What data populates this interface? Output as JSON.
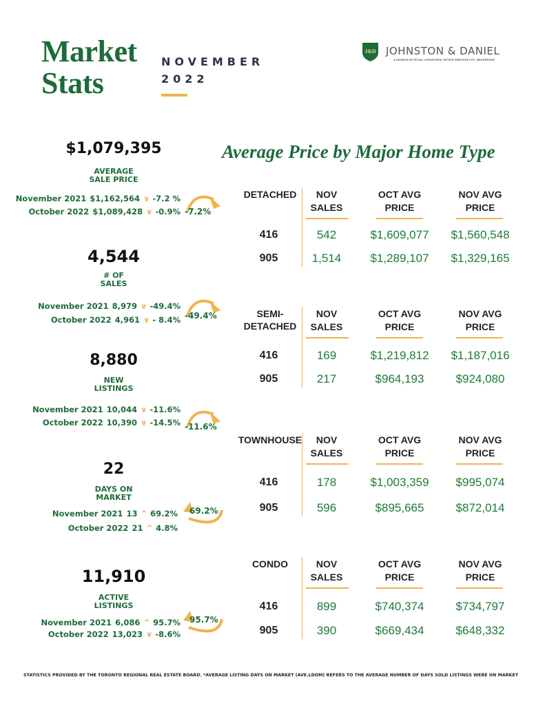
{
  "header": {
    "title_line1": "Market",
    "title_line2": "Stats",
    "month": "NOVEMBER",
    "year": "2022"
  },
  "logo": {
    "mark": "J&D",
    "name": "JOHNSTON & DANIEL",
    "subtitle": "A DIVISION OF ROYAL LePAGE REAL ESTATE SERVICES LTD., BROKERAGE"
  },
  "colors": {
    "brand_green": "#1d6b3a",
    "accent_orange": "#f0b44c"
  },
  "stats": [
    {
      "value": "$1,079,395",
      "label1": "AVERAGE",
      "label2": "SALE PRICE",
      "rows": [
        {
          "period": "November 2021",
          "value": "$1,162,564",
          "dir": "down",
          "change": "-7.2 %"
        },
        {
          "period": "October 2022",
          "value": "$1,089,428",
          "dir": "down",
          "change": "-0.9%"
        }
      ],
      "badge": "-7.2%",
      "badge_dir": "down"
    },
    {
      "value": "4,544",
      "label1": "# OF",
      "label2": "SALES",
      "rows": [
        {
          "period": "November 2021",
          "value": "8,979",
          "dir": "down",
          "change": "-49.4%"
        },
        {
          "period": "October 2022",
          "value": "4,961",
          "dir": "down",
          "change": "- 8.4%"
        }
      ],
      "badge": "-49.4%",
      "badge_dir": "down"
    },
    {
      "value": "8,880",
      "label1": "NEW",
      "label2": "LISTINGS",
      "rows": [
        {
          "period": "November 2021",
          "value": "10,044",
          "dir": "down",
          "change": "-11.6%"
        },
        {
          "period": "October 2022",
          "value": "10,390",
          "dir": "down",
          "change": "-14.5%"
        }
      ],
      "badge": "-11.6%",
      "badge_dir": "down"
    },
    {
      "value": "22",
      "label1": "DAYS ON",
      "label2": "MARKET",
      "rows": [
        {
          "period": "November 2021",
          "value": "13",
          "dir": "up",
          "change": "69.2%"
        },
        {
          "period": "October 2022",
          "value": "21",
          "dir": "up",
          "change": "4.8%"
        }
      ],
      "badge": "69.2%",
      "badge_dir": "up"
    },
    {
      "value": "11,910",
      "label1": "ACTIVE",
      "label2": "LISTINGS",
      "rows": [
        {
          "period": "November 2021",
          "value": "6,086",
          "dir": "up",
          "change": "95.7%"
        },
        {
          "period": "October 2022",
          "value": "13,023",
          "dir": "down",
          "change": "-8.6%"
        }
      ],
      "badge": "95.7%",
      "badge_dir": "up"
    }
  ],
  "price_section": {
    "heading": "Average Price by Major Home Type",
    "columns": [
      [
        "NOV",
        "SALES"
      ],
      [
        "OCT AVG",
        "PRICE"
      ],
      [
        "NOV AVG",
        "PRICE"
      ]
    ],
    "types": [
      {
        "name1": "DETACHED",
        "name2": "",
        "rows": [
          {
            "region": "416",
            "sales": "542",
            "oct": "$1,609,077",
            "nov": "$1,560,548"
          },
          {
            "region": "905",
            "sales": "1,514",
            "oct": "$1,289,107",
            "nov": "$1,329,165"
          }
        ]
      },
      {
        "name1": "SEMI-",
        "name2": "DETACHED",
        "rows": [
          {
            "region": "416",
            "sales": "169",
            "oct": "$1,219,812",
            "nov": "$1,187,016"
          },
          {
            "region": "905",
            "sales": "217",
            "oct": "$964,193",
            "nov": "$924,080"
          }
        ]
      },
      {
        "name1": "TOWNHOUSE",
        "name2": "",
        "rows": [
          {
            "region": "416",
            "sales": "178",
            "oct": "$1,003,359",
            "nov": "$995,074"
          },
          {
            "region": "905",
            "sales": "596",
            "oct": "$895,665",
            "nov": "$872,014"
          }
        ]
      },
      {
        "name1": "CONDO",
        "name2": "",
        "rows": [
          {
            "region": "416",
            "sales": "899",
            "oct": "$740,374",
            "nov": "$734,797"
          },
          {
            "region": "905",
            "sales": "390",
            "oct": "$669,434",
            "nov": "$648,332"
          }
        ]
      }
    ]
  },
  "footer": "STATISTICS PROVIDED BY THE TORONTO REGIONAL REAL ESTATE BOARD. *AVERAGE LISTING DAYS ON MARKET (AVE.LDOM) REFERS TO THE AVERAGE NUMBER OF DAYS SOLD LISTINGS WERE ON MARKET"
}
